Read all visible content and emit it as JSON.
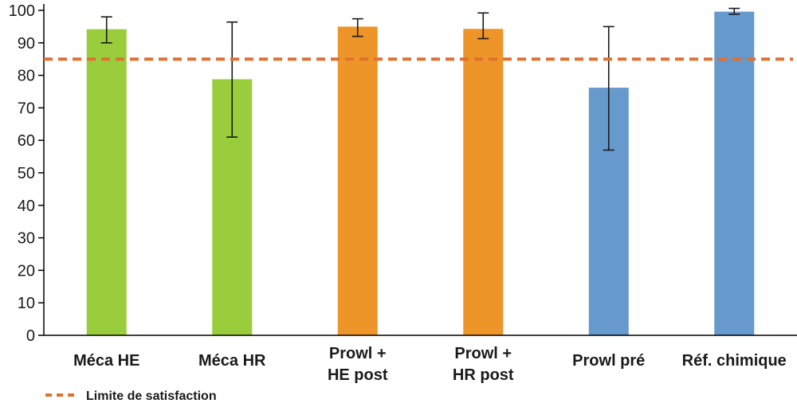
{
  "chart_data": {
    "type": "bar",
    "categories": [
      [
        "Méca HE"
      ],
      [
        "Méca HR"
      ],
      [
        "Prowl +",
        "HE post"
      ],
      [
        "Prowl +",
        "HR post"
      ],
      [
        "Prowl pré"
      ],
      [
        "Réf. chimique"
      ]
    ],
    "values": [
      94.2,
      78.8,
      95.0,
      94.3,
      76.2,
      99.6
    ],
    "error_low": [
      90,
      61,
      92,
      91.3,
      57,
      98.8
    ],
    "error_high": [
      98,
      96.4,
      97.4,
      99.2,
      95,
      100.6
    ],
    "bar_colors": [
      "#9acd3c",
      "#9acd3c",
      "#ed9528",
      "#ed9528",
      "#6699cc",
      "#6699cc"
    ],
    "ylim": [
      0,
      100
    ],
    "yticks": [
      0,
      10,
      20,
      30,
      40,
      50,
      60,
      70,
      80,
      90,
      100
    ],
    "threshold": {
      "value": 85,
      "color": "#e07030",
      "label": "Limite de satisfaction"
    },
    "legend_position": "bottom-left",
    "grid": false
  }
}
